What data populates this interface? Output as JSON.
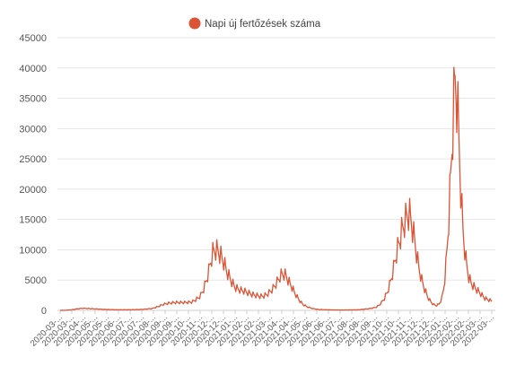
{
  "chart_data": {
    "type": "line",
    "title": "",
    "xlabel": "",
    "ylabel": "",
    "ylim": [
      0,
      45000
    ],
    "grid": true,
    "legend": {
      "placement": "top-center",
      "label": "Napi új fertőzések száma"
    },
    "color": "#dc5436",
    "yticks": [
      "45000",
      "40000",
      "35000",
      "30000",
      "25000",
      "20000",
      "15000",
      "10000",
      "5000",
      "0"
    ],
    "xticks": [
      "2020-03-...",
      "2020-03-...",
      "2020-04-...",
      "2020-05-...",
      "2020-05-...",
      "2020-06-...",
      "2020-07-...",
      "2020-07-...",
      "2020-08-...",
      "2020-09-...",
      "2020-09-...",
      "2020-10-...",
      "2020-11-...",
      "2020-12-...",
      "2020-12-...",
      "2021-01-...",
      "2021-02-...",
      "2021-02-...",
      "2021-03-...",
      "2021-04-...",
      "2021-04-...",
      "2021-05-...",
      "2021-06-...",
      "2021-06-...",
      "2021-07-...",
      "2021-08-...",
      "2021-08-...",
      "2021-09-...",
      "2021-10-...",
      "2021-10-...",
      "2021-11-...",
      "2021-12-...",
      "2021-12-...",
      "2022-01-...",
      "2022-02-...",
      "2022-02-...",
      "2022-03-...",
      "2022-03-..."
    ],
    "x": [
      "2020-03-04",
      "2022-03-31"
    ],
    "series": [
      {
        "name": "Napi új fertőzések száma",
        "anchors": [
          [
            0,
            0
          ],
          [
            10,
            20
          ],
          [
            20,
            100
          ],
          [
            30,
            250
          ],
          [
            40,
            350
          ],
          [
            50,
            300
          ],
          [
            60,
            250
          ],
          [
            70,
            200
          ],
          [
            80,
            150
          ],
          [
            100,
            100
          ],
          [
            120,
            100
          ],
          [
            140,
            150
          ],
          [
            160,
            300
          ],
          [
            170,
            600
          ],
          [
            180,
            1000
          ],
          [
            190,
            1200
          ],
          [
            200,
            1300
          ],
          [
            210,
            1300
          ],
          [
            220,
            1300
          ],
          [
            230,
            1400
          ],
          [
            240,
            2000
          ],
          [
            245,
            2500
          ],
          [
            250,
            3500
          ],
          [
            255,
            5000
          ],
          [
            258,
            6000
          ],
          [
            262,
            8000
          ],
          [
            266,
            9500
          ],
          [
            270,
            10000
          ],
          [
            275,
            9800
          ],
          [
            280,
            9000
          ],
          [
            285,
            8000
          ],
          [
            290,
            6500
          ],
          [
            295,
            5500
          ],
          [
            300,
            4500
          ],
          [
            305,
            3800
          ],
          [
            310,
            3500
          ],
          [
            315,
            3300
          ],
          [
            320,
            3200
          ],
          [
            325,
            3000
          ],
          [
            330,
            2800
          ],
          [
            335,
            2600
          ],
          [
            340,
            2500
          ],
          [
            345,
            2400
          ],
          [
            350,
            2300
          ],
          [
            355,
            2400
          ],
          [
            360,
            2600
          ],
          [
            365,
            3000
          ],
          [
            370,
            3500
          ],
          [
            375,
            4200
          ],
          [
            380,
            5000
          ],
          [
            383,
            5600
          ],
          [
            386,
            5900
          ],
          [
            390,
            6000
          ],
          [
            394,
            5600
          ],
          [
            398,
            4800
          ],
          [
            403,
            4000
          ],
          [
            408,
            3000
          ],
          [
            413,
            2200
          ],
          [
            418,
            1500
          ],
          [
            423,
            1000
          ],
          [
            430,
            600
          ],
          [
            440,
            300
          ],
          [
            450,
            150
          ],
          [
            470,
            80
          ],
          [
            490,
            60
          ],
          [
            510,
            80
          ],
          [
            520,
            100
          ],
          [
            530,
            200
          ],
          [
            540,
            300
          ],
          [
            550,
            500
          ],
          [
            555,
            800
          ],
          [
            560,
            1300
          ],
          [
            565,
            2000
          ],
          [
            570,
            3000
          ],
          [
            575,
            4500
          ],
          [
            580,
            6500
          ],
          [
            585,
            9000
          ],
          [
            590,
            11000
          ],
          [
            595,
            13000
          ],
          [
            600,
            14500
          ],
          [
            604,
            15500
          ],
          [
            608,
            16000
          ],
          [
            611,
            15000
          ],
          [
            615,
            13000
          ],
          [
            620,
            10000
          ],
          [
            625,
            7000
          ],
          [
            630,
            5000
          ],
          [
            635,
            3500
          ],
          [
            640,
            2300
          ],
          [
            645,
            1500
          ],
          [
            650,
            1000
          ],
          [
            655,
            800
          ],
          [
            660,
            1000
          ],
          [
            665,
            2000
          ],
          [
            668,
            3500
          ],
          [
            671,
            6000
          ],
          [
            674,
            10000
          ],
          [
            677,
            15000
          ],
          [
            680,
            21000
          ],
          [
            683,
            28000
          ],
          [
            686,
            34000
          ],
          [
            688,
            38000
          ],
          [
            690,
            37000
          ],
          [
            693,
            32000
          ],
          [
            696,
            25000
          ],
          [
            699,
            18000
          ],
          [
            702,
            13000
          ],
          [
            705,
            10000
          ],
          [
            708,
            7500
          ],
          [
            712,
            5500
          ],
          [
            716,
            4500
          ],
          [
            720,
            4000
          ],
          [
            725,
            3500
          ],
          [
            730,
            3000
          ],
          [
            735,
            2500
          ],
          [
            740,
            2000
          ],
          [
            744,
            1800
          ],
          [
            748,
            1700
          ],
          [
            752,
            1500
          ]
        ]
      }
    ]
  }
}
